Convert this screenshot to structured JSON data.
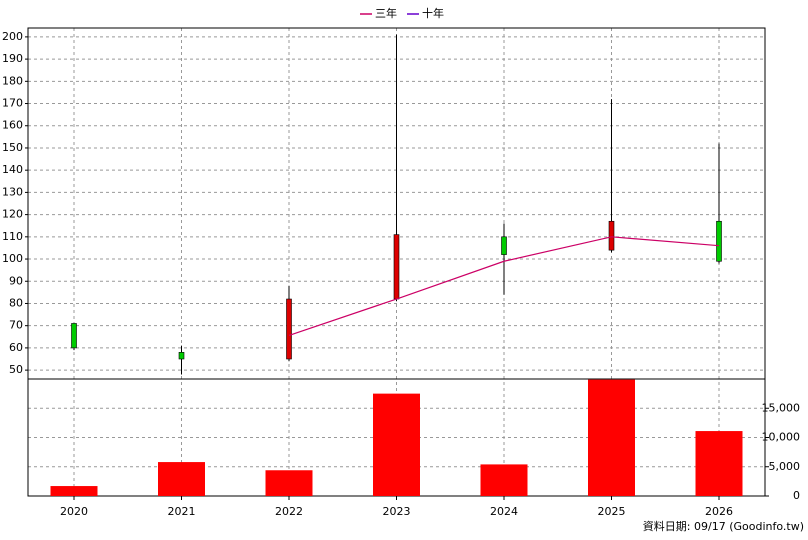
{
  "chart_data": {
    "type": "candlestick",
    "categories": [
      "2020",
      "2021",
      "2022",
      "2023",
      "2024",
      "2025",
      "2026"
    ],
    "open": [
      71,
      58,
      55,
      82,
      110,
      104,
      117
    ],
    "high": [
      71,
      61,
      88,
      201,
      116,
      172,
      152
    ],
    "low": [
      59,
      48,
      54,
      81,
      84,
      103,
      98
    ],
    "close": [
      60,
      55,
      82,
      111,
      102,
      117,
      99
    ],
    "up_color": "#dd0000",
    "down_color": "#00cc00",
    "ylim": [
      46,
      204
    ],
    "yticks": [
      50,
      60,
      70,
      80,
      90,
      100,
      110,
      120,
      130,
      140,
      150,
      160,
      170,
      180,
      190,
      200
    ],
    "grid": true,
    "lines": [
      {
        "name": "三年",
        "color": "#cc0066",
        "values": [
          null,
          null,
          65.6,
          82,
          99,
          110,
          106
        ]
      },
      {
        "name": "十年",
        "color": "#6600cc",
        "values": [
          null,
          null,
          null,
          null,
          null,
          null,
          null
        ]
      }
    ],
    "volume": {
      "values": [
        1700,
        5800,
        4400,
        17500,
        5400,
        19900,
        11100
      ],
      "color": "#ff0000",
      "ylim": [
        0,
        20000
      ],
      "yticks": [
        0,
        {
          "value": 5000,
          "label": "5,000"
        },
        {
          "value": 10000,
          "label": "10,000"
        },
        {
          "value": 15000,
          "label": "15,000"
        }
      ]
    },
    "note": "資料日期: 09/17  (Goodinfo.tw)"
  }
}
